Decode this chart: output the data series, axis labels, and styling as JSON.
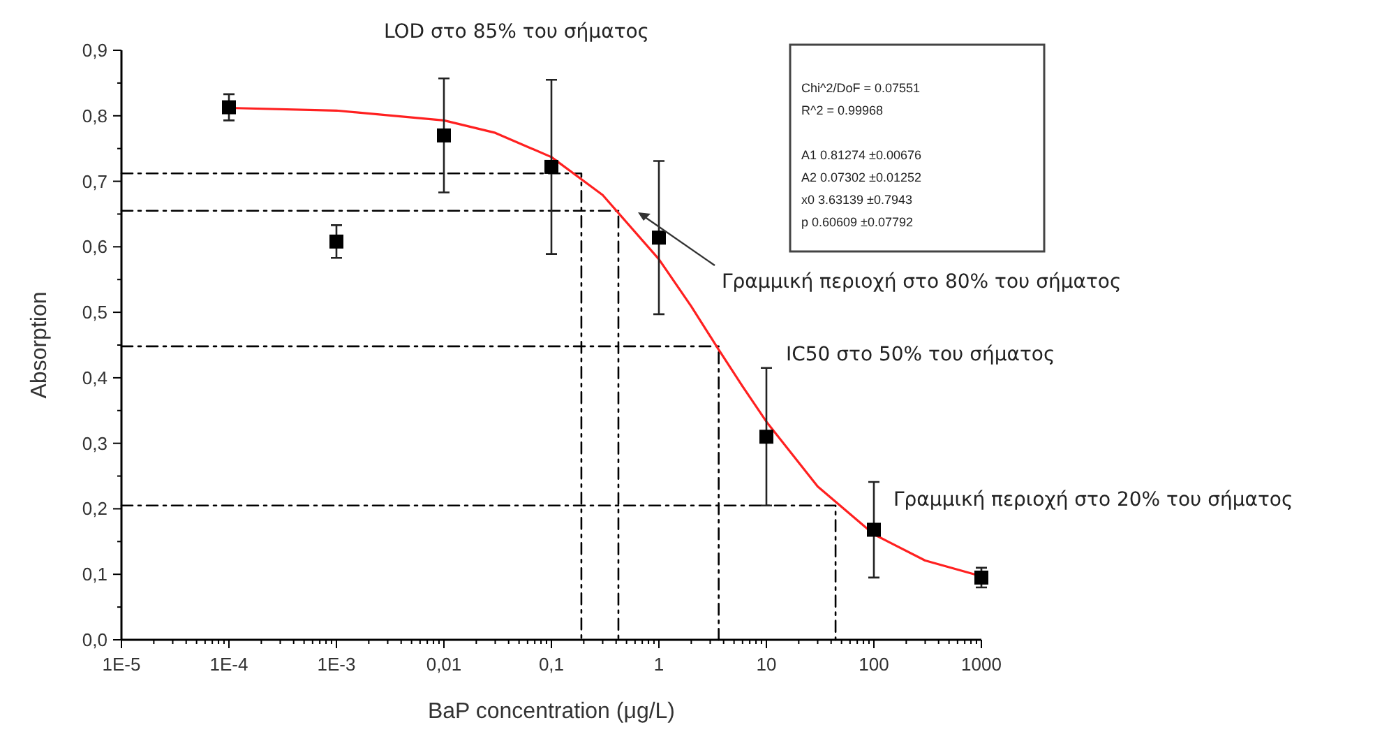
{
  "chart_data": {
    "type": "scatter",
    "xlabel": "BaP concentration (μg/L)",
    "ylabel": "Absorption",
    "log": "x",
    "grid": false,
    "xlim": [
      1e-05,
      1000
    ],
    "xticks": [
      {
        "value": 1e-05,
        "label": "1E-5"
      },
      {
        "value": 0.0001,
        "label": "1E-4"
      },
      {
        "value": 0.001,
        "label": "1E-3"
      },
      {
        "value": 0.01,
        "label": "0,01"
      },
      {
        "value": 0.1,
        "label": "0,1"
      },
      {
        "value": 1,
        "label": "1"
      },
      {
        "value": 10,
        "label": "10"
      },
      {
        "value": 100,
        "label": "100"
      },
      {
        "value": 1000,
        "label": "1000"
      }
    ],
    "ylim": [
      0,
      0.9
    ],
    "yticks": [
      {
        "value": 0,
        "label": "0,0"
      },
      {
        "value": 0.1,
        "label": "0,1"
      },
      {
        "value": 0.2,
        "label": "0,2"
      },
      {
        "value": 0.3,
        "label": "0,3"
      },
      {
        "value": 0.4,
        "label": "0,4"
      },
      {
        "value": 0.5,
        "label": "0,5"
      },
      {
        "value": 0.6,
        "label": "0,6"
      },
      {
        "value": 0.7,
        "label": "0,7"
      },
      {
        "value": 0.8,
        "label": "0,8"
      },
      {
        "value": 0.9,
        "label": "0,9"
      }
    ],
    "series": [
      {
        "type": "line",
        "color": "#000000",
        "line_style": "dashed",
        "x": [
          1e-05,
          0.19,
          0.19
        ],
        "values": [
          0.712,
          0.712,
          0
        ]
      },
      {
        "type": "line",
        "color": "#000000",
        "line_style": "dashed",
        "x": [
          1e-05,
          0.42,
          0.42
        ],
        "values": [
          0.655,
          0.655,
          0
        ]
      },
      {
        "type": "line",
        "color": "#000000",
        "line_style": "dashed",
        "x": [
          1e-05,
          3.6,
          3.6
        ],
        "values": [
          0.448,
          0.448,
          0
        ]
      },
      {
        "type": "line",
        "color": "#000000",
        "line_style": "dashed",
        "x": [
          1e-05,
          44,
          44
        ],
        "values": [
          0.205,
          0.205,
          0
        ]
      },
      {
        "type": "line",
        "color": "#ff2020",
        "line_style": "solid",
        "x": [
          0.0001,
          0.001,
          0.01,
          0.03,
          0.1,
          0.3,
          1,
          2,
          3.6,
          6,
          10,
          30,
          100,
          300,
          1000
        ],
        "values": [
          0.812,
          0.808,
          0.793,
          0.774,
          0.737,
          0.679,
          0.581,
          0.509,
          0.443,
          0.387,
          0.333,
          0.234,
          0.161,
          0.121,
          0.097
        ]
      },
      {
        "color": "#000000",
        "marker": "square",
        "x": [
          0.0001,
          0.001,
          0.01,
          0.1,
          1,
          10,
          100,
          1000
        ],
        "values": [
          0.813,
          0.608,
          0.77,
          0.722,
          0.614,
          0.31,
          0.168,
          0.095
        ],
        "errors": [
          0.02,
          0.025,
          0.087,
          0.133,
          0.117,
          0.105,
          0.073,
          0.015
        ]
      }
    ],
    "annotations": [
      "LOD στο 85% του σήματος",
      "Γραμμική περιοχή στο 80% του σήματος",
      "IC50 στο 50% του σήματος",
      "Γραμμική περιοχή στο 20% του σήματος",
      "Chi^2/DoF = 0.07551",
      "R^2 = 0.99968",
      "A1 0.81274 ±0.00676",
      "A2 0.07302 ±0.01252",
      "x0 3.63139 ±0.7943",
      "p 0.60609 ±0.07792"
    ]
  }
}
